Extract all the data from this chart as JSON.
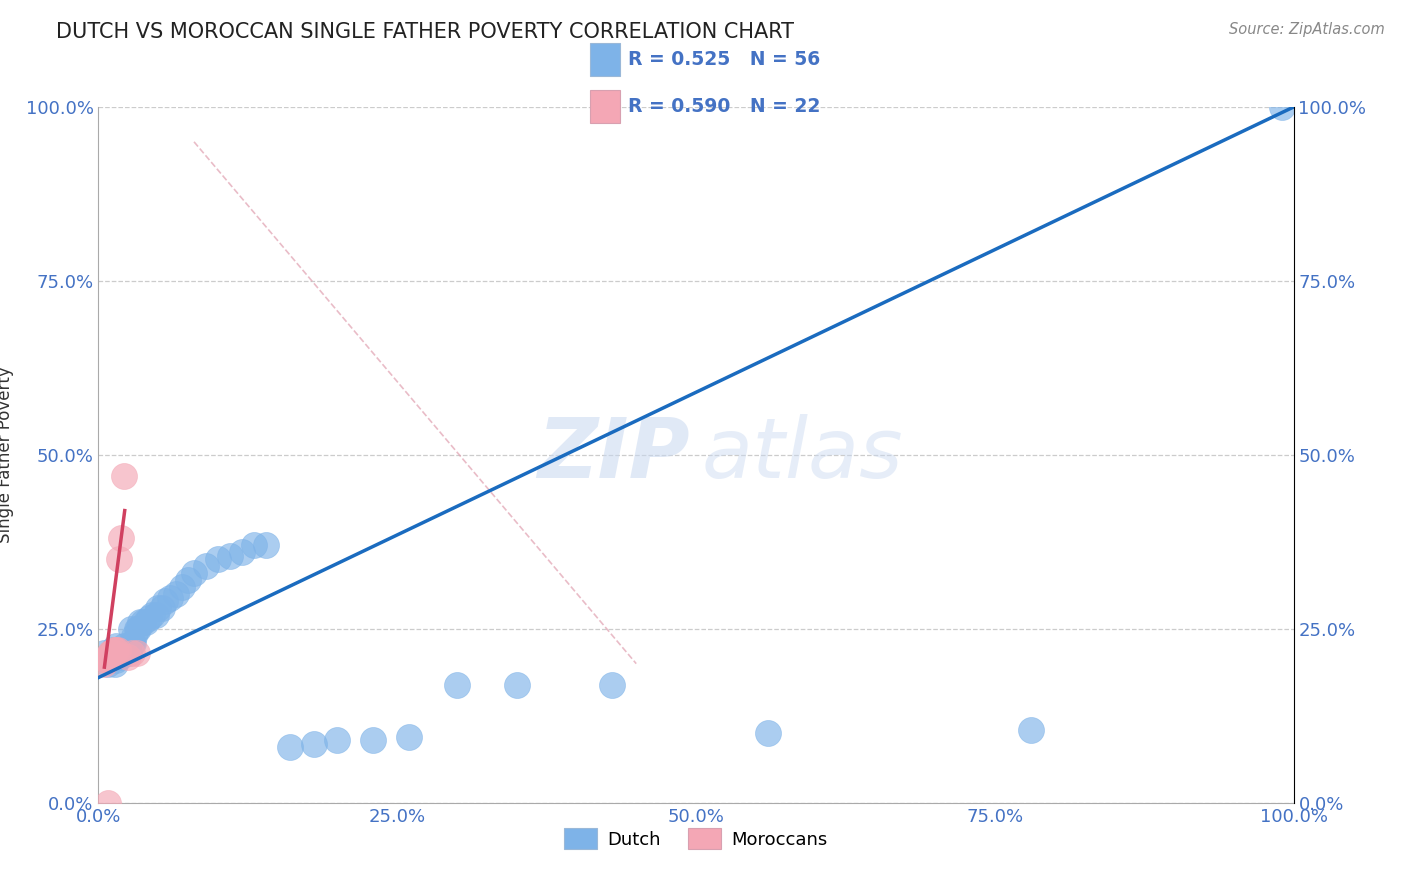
{
  "title": "DUTCH VS MOROCCAN SINGLE FATHER POVERTY CORRELATION CHART",
  "source": "Source: ZipAtlas.com",
  "ylabel": "Single Father Poverty",
  "xlim": [
    0,
    1
  ],
  "ylim": [
    0,
    1
  ],
  "xticks": [
    0.0,
    0.25,
    0.5,
    0.75,
    1.0
  ],
  "xticklabels": [
    "0.0%",
    "25.0%",
    "50.0%",
    "75.0%",
    "100.0%"
  ],
  "yticks": [
    0.0,
    0.25,
    0.5,
    0.75,
    1.0
  ],
  "yticklabels": [
    "0.0%",
    "25.0%",
    "50.0%",
    "75.0%",
    "100.0%"
  ],
  "dutch_color": "#7eb3e8",
  "moroccan_color": "#f4a7b5",
  "regression_blue_color": "#1a6bbf",
  "regression_pink_color": "#d04060",
  "tick_color": "#4472c4",
  "R_dutch": 0.525,
  "N_dutch": 56,
  "R_moroccan": 0.59,
  "N_moroccan": 22,
  "watermark_zip": "ZIP",
  "watermark_atlas": "atlas",
  "dutch_x": [
    0.005,
    0.008,
    0.01,
    0.012,
    0.012,
    0.014,
    0.015,
    0.015,
    0.016,
    0.017,
    0.018,
    0.019,
    0.02,
    0.021,
    0.022,
    0.023,
    0.024,
    0.025,
    0.026,
    0.027,
    0.028,
    0.029,
    0.03,
    0.032,
    0.033,
    0.035,
    0.037,
    0.04,
    0.042,
    0.045,
    0.048,
    0.05,
    0.053,
    0.056,
    0.06,
    0.065,
    0.07,
    0.075,
    0.08,
    0.09,
    0.1,
    0.11,
    0.12,
    0.13,
    0.14,
    0.16,
    0.18,
    0.2,
    0.23,
    0.26,
    0.3,
    0.35,
    0.43,
    0.56,
    0.78,
    0.99
  ],
  "dutch_y": [
    0.215,
    0.2,
    0.21,
    0.215,
    0.22,
    0.2,
    0.205,
    0.225,
    0.215,
    0.21,
    0.21,
    0.22,
    0.215,
    0.225,
    0.215,
    0.22,
    0.22,
    0.215,
    0.215,
    0.25,
    0.23,
    0.23,
    0.24,
    0.25,
    0.25,
    0.26,
    0.26,
    0.26,
    0.265,
    0.27,
    0.27,
    0.28,
    0.28,
    0.29,
    0.295,
    0.3,
    0.31,
    0.32,
    0.33,
    0.34,
    0.35,
    0.355,
    0.36,
    0.37,
    0.37,
    0.08,
    0.085,
    0.09,
    0.09,
    0.095,
    0.17,
    0.17,
    0.17,
    0.1,
    0.105,
    1.0
  ],
  "moroccan_x": [
    0.005,
    0.006,
    0.007,
    0.008,
    0.008,
    0.009,
    0.01,
    0.01,
    0.011,
    0.012,
    0.013,
    0.013,
    0.014,
    0.015,
    0.016,
    0.017,
    0.019,
    0.021,
    0.025,
    0.028,
    0.032,
    0.008
  ],
  "moroccan_y": [
    0.2,
    0.205,
    0.205,
    0.205,
    0.21,
    0.21,
    0.215,
    0.215,
    0.215,
    0.215,
    0.215,
    0.22,
    0.22,
    0.22,
    0.22,
    0.35,
    0.38,
    0.47,
    0.21,
    0.215,
    0.215,
    0.0
  ],
  "blue_line_x": [
    0.0,
    1.0
  ],
  "blue_line_y": [
    0.18,
    1.0
  ],
  "pink_line_x": [
    0.005,
    0.022
  ],
  "pink_line_y": [
    0.195,
    0.42
  ],
  "dashed_line_x": [
    0.08,
    0.45
  ],
  "dashed_line_y": [
    0.95,
    0.2
  ]
}
